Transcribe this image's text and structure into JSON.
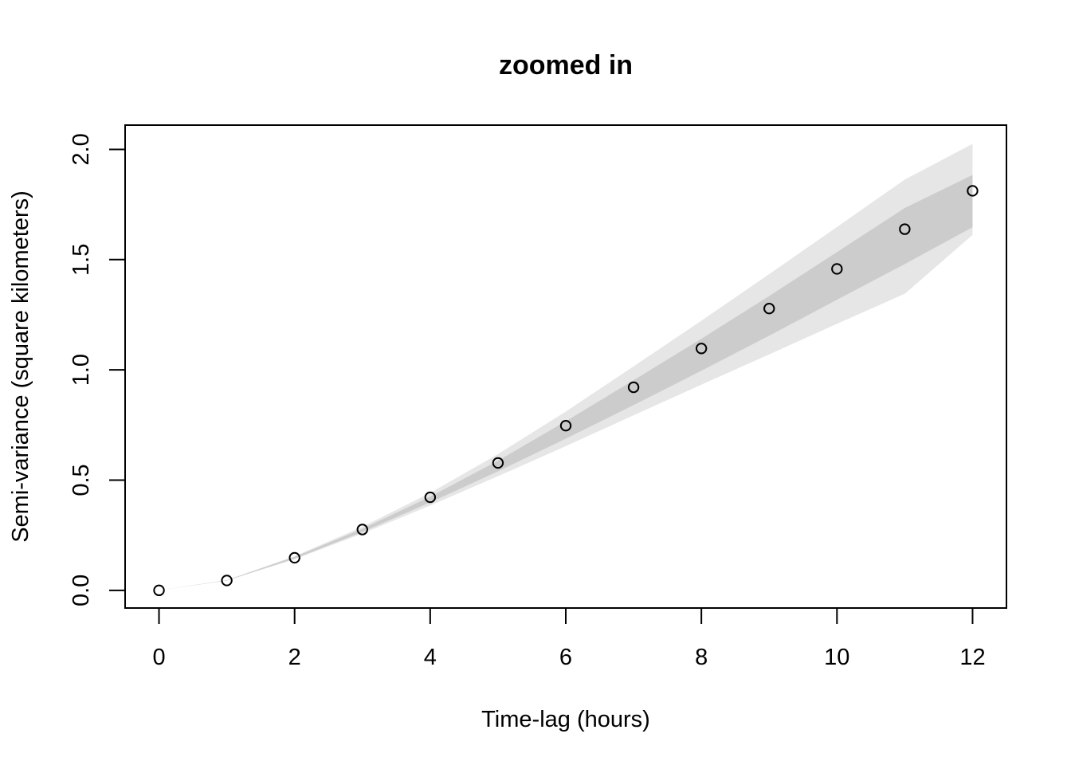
{
  "chart_data": {
    "type": "scatter",
    "title": "zoomed in",
    "xlabel": "Time-lag (hours)",
    "ylabel": "Semi-variance (square kilometers)",
    "xlim": [
      -0.5,
      12.5
    ],
    "ylim": [
      -0.08,
      2.11
    ],
    "x_ticks": [
      0,
      2,
      4,
      6,
      8,
      10,
      12
    ],
    "y_ticks": [
      0.0,
      0.5,
      1.0,
      1.5,
      2.0
    ],
    "x_tick_labels": [
      "0",
      "2",
      "4",
      "6",
      "8",
      "10",
      "12"
    ],
    "y_tick_labels": [
      "0.0",
      "0.5",
      "1.0",
      "1.5",
      "2.0"
    ],
    "grid": false,
    "series": [
      {
        "type": "points",
        "marker": "open-circle",
        "x": [
          0,
          1,
          2,
          3,
          4,
          5,
          6,
          7,
          8,
          9,
          10,
          11,
          12
        ],
        "y": [
          0.0,
          0.045,
          0.148,
          0.276,
          0.422,
          0.578,
          0.747,
          0.921,
          1.097,
          1.278,
          1.458,
          1.638,
          1.812
        ]
      },
      {
        "type": "band",
        "role": "inner",
        "color": "#cccccc",
        "x": [
          0,
          1,
          2,
          3,
          4,
          5,
          6,
          7,
          8,
          9,
          10,
          11,
          12
        ],
        "lower": [
          0.0,
          0.045,
          0.144,
          0.265,
          0.399,
          0.54,
          0.688,
          0.84,
          0.996,
          1.155,
          1.318,
          1.48,
          1.647
        ],
        "upper": [
          0.0,
          0.046,
          0.152,
          0.279,
          0.425,
          0.588,
          0.767,
          0.953,
          1.141,
          1.335,
          1.534,
          1.734,
          1.884
        ]
      },
      {
        "type": "band",
        "role": "outer",
        "color": "#e6e6e6",
        "x": [
          0,
          1,
          2,
          3,
          4,
          5,
          6,
          7,
          8,
          9,
          10,
          11,
          12
        ],
        "lower": [
          0.0,
          0.044,
          0.141,
          0.258,
          0.385,
          0.518,
          0.654,
          0.794,
          0.933,
          1.07,
          1.209,
          1.345,
          1.612
        ],
        "upper": [
          0.0,
          0.047,
          0.155,
          0.288,
          0.442,
          0.618,
          0.811,
          1.016,
          1.223,
          1.434,
          1.648,
          1.863,
          2.025
        ]
      }
    ]
  },
  "colors": {
    "points_stroke": "#000000",
    "inner_band": "#cccccc",
    "outer_band": "#e6e6e6",
    "axis": "#000000",
    "background": "#ffffff"
  }
}
